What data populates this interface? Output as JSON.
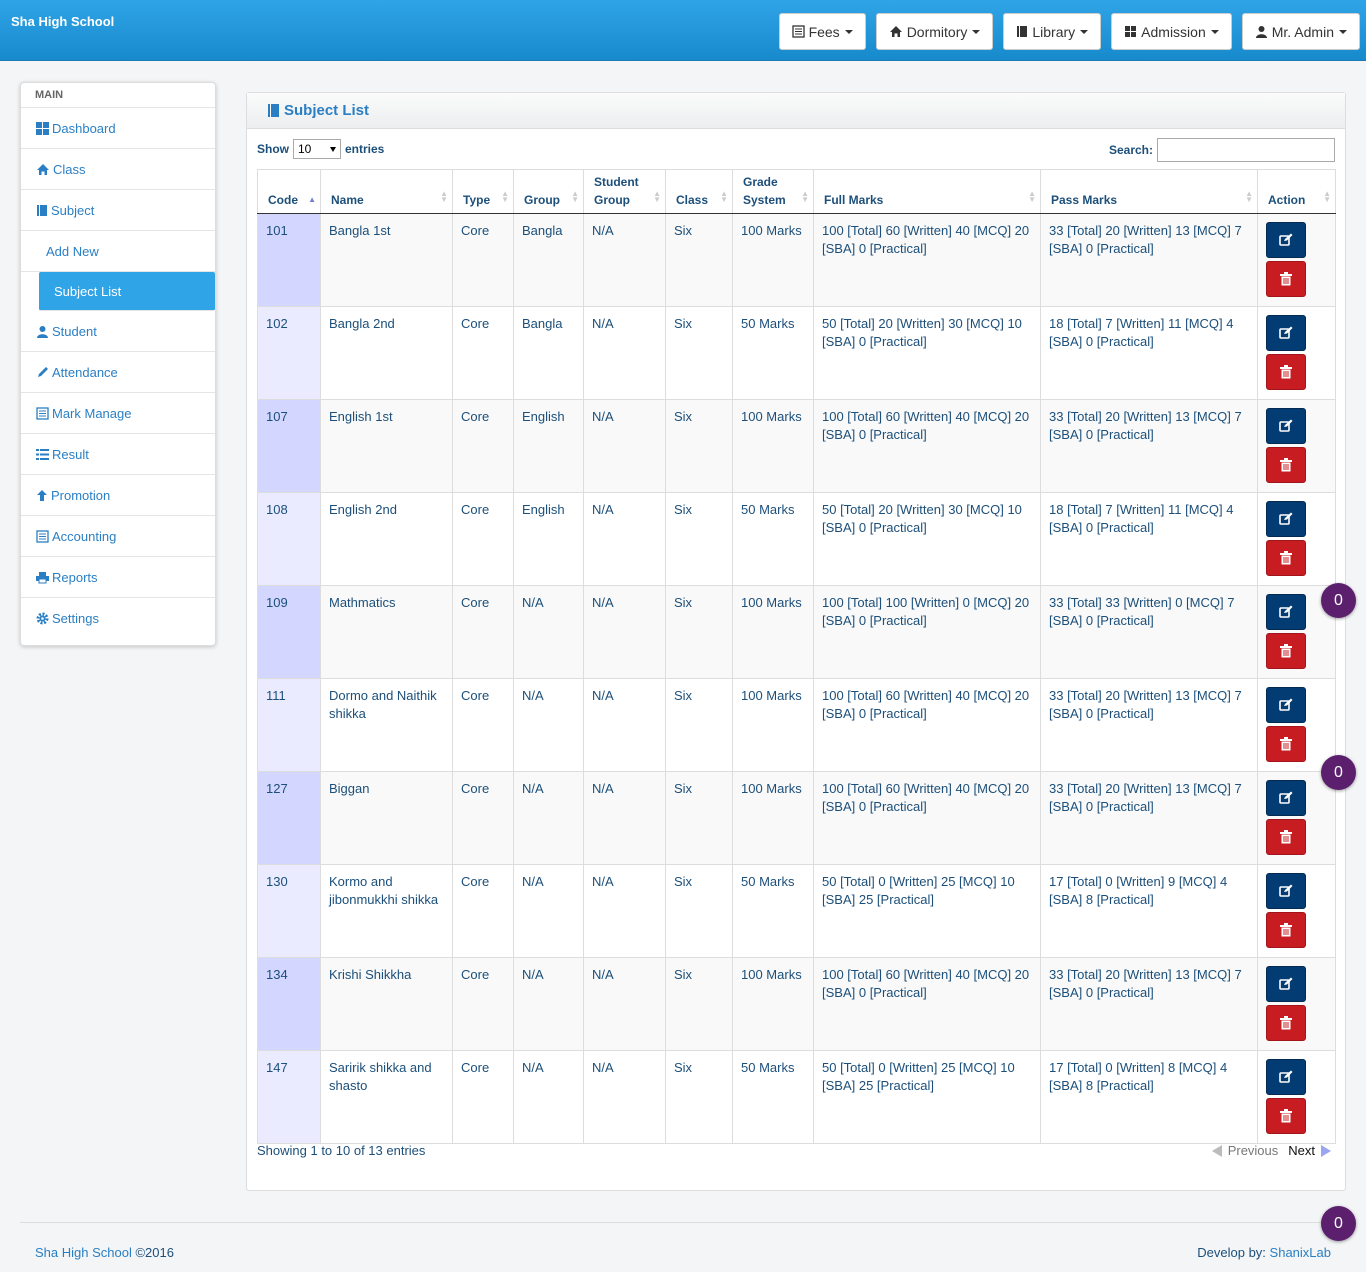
{
  "app": {
    "brand": "Sha High School"
  },
  "topnav": [
    {
      "label": "Fees",
      "icon": "list-icon"
    },
    {
      "label": "Dormitory",
      "icon": "home-icon"
    },
    {
      "label": "Library",
      "icon": "book-icon"
    },
    {
      "label": "Admission",
      "icon": "grid-icon"
    },
    {
      "label": "Mr. Admin",
      "icon": "user-icon"
    }
  ],
  "sidebar": {
    "heading": "MAIN",
    "items": [
      {
        "label": "Dashboard",
        "icon": "dashboard-icon"
      },
      {
        "label": "Class",
        "icon": "home-icon"
      },
      {
        "label": "Subject",
        "icon": "book-icon"
      },
      {
        "label": "Add New"
      },
      {
        "label": "Subject List"
      },
      {
        "label": "Student",
        "icon": "user-icon"
      },
      {
        "label": "Attendance",
        "icon": "pencil-icon"
      },
      {
        "label": "Mark Manage",
        "icon": "list-icon"
      },
      {
        "label": "Result",
        "icon": "list-bullets-icon"
      },
      {
        "label": "Promotion",
        "icon": "arrow-up-icon"
      },
      {
        "label": "Accounting",
        "icon": "list-icon"
      },
      {
        "label": "Reports",
        "icon": "print-icon"
      },
      {
        "label": "Settings",
        "icon": "gear-icon"
      }
    ]
  },
  "panel": {
    "title": "Subject List"
  },
  "controls": {
    "show_label": "Show",
    "entries_value": "10",
    "entries_label": "entries",
    "search_label": "Search:",
    "search_value": ""
  },
  "table": {
    "columns": [
      {
        "l1": "",
        "l2": "Code"
      },
      {
        "l1": "",
        "l2": "Name"
      },
      {
        "l1": "",
        "l2": "Type"
      },
      {
        "l1": "",
        "l2": "Group"
      },
      {
        "l1": "Student",
        "l2": "Group"
      },
      {
        "l1": "",
        "l2": "Class"
      },
      {
        "l1": "Grade",
        "l2": "System"
      },
      {
        "l1": "",
        "l2": "Full Marks"
      },
      {
        "l1": "",
        "l2": "Pass Marks"
      },
      {
        "l1": "",
        "l2": "Action"
      }
    ],
    "rows": [
      {
        "code": "101",
        "name": "Bangla 1st",
        "type": "Core",
        "group": "Bangla",
        "student_group": "N/A",
        "class": "Six",
        "grade": "100 Marks",
        "full": "100 [Total] 60 [Written] 40 [MCQ] 20 [SBA] 0 [Practical]",
        "pass": "33 [Total] 20 [Written] 13 [MCQ] 7 [SBA] 0 [Practical]"
      },
      {
        "code": "102",
        "name": "Bangla 2nd",
        "type": "Core",
        "group": "Bangla",
        "student_group": "N/A",
        "class": "Six",
        "grade": "50 Marks",
        "full": "50 [Total] 20 [Written] 30 [MCQ] 10 [SBA] 0 [Practical]",
        "pass": "18 [Total] 7 [Written] 11 [MCQ] 4 [SBA] 0 [Practical]"
      },
      {
        "code": "107",
        "name": "English 1st",
        "type": "Core",
        "group": "English",
        "student_group": "N/A",
        "class": "Six",
        "grade": "100 Marks",
        "full": "100 [Total] 60 [Written] 40 [MCQ] 20 [SBA] 0 [Practical]",
        "pass": "33 [Total] 20 [Written] 13 [MCQ] 7 [SBA] 0 [Practical]"
      },
      {
        "code": "108",
        "name": "English 2nd",
        "type": "Core",
        "group": "English",
        "student_group": "N/A",
        "class": "Six",
        "grade": "50 Marks",
        "full": "50 [Total] 20 [Written] 30 [MCQ] 10 [SBA] 0 [Practical]",
        "pass": "18 [Total] 7 [Written] 11 [MCQ] 4 [SBA] 0 [Practical]"
      },
      {
        "code": "109",
        "name": "Mathmatics",
        "type": "Core",
        "group": "N/A",
        "student_group": "N/A",
        "class": "Six",
        "grade": "100 Marks",
        "full": "100 [Total] 100 [Written] 0 [MCQ] 20 [SBA] 0 [Practical]",
        "pass": "33 [Total] 33 [Written] 0 [MCQ] 7 [SBA] 0 [Practical]"
      },
      {
        "code": "111",
        "name": "Dormo and Naithik shikka",
        "type": "Core",
        "group": "N/A",
        "student_group": "N/A",
        "class": "Six",
        "grade": "100 Marks",
        "full": "100 [Total] 60 [Written] 40 [MCQ] 20 [SBA] 0 [Practical]",
        "pass": "33 [Total] 20 [Written] 13 [MCQ] 7 [SBA] 0 [Practical]"
      },
      {
        "code": "127",
        "name": "Biggan",
        "type": "Core",
        "group": "N/A",
        "student_group": "N/A",
        "class": "Six",
        "grade": "100 Marks",
        "full": "100 [Total] 60 [Written] 40 [MCQ] 20 [SBA] 0 [Practical]",
        "pass": "33 [Total] 20 [Written] 13 [MCQ] 7 [SBA] 0 [Practical]"
      },
      {
        "code": "130",
        "name": "Kormo and jibonmukkhi shikka",
        "type": "Core",
        "group": "N/A",
        "student_group": "N/A",
        "class": "Six",
        "grade": "50 Marks",
        "full": "50 [Total] 0 [Written] 25 [MCQ] 10 [SBA] 25 [Practical]",
        "pass": "17 [Total] 0 [Written] 9 [MCQ] 4 [SBA] 8 [Practical]"
      },
      {
        "code": "134",
        "name": "Krishi Shikkha",
        "type": "Core",
        "group": "N/A",
        "student_group": "N/A",
        "class": "Six",
        "grade": "100 Marks",
        "full": "100 [Total] 60 [Written] 40 [MCQ] 20 [SBA] 0 [Practical]",
        "pass": "33 [Total] 20 [Written] 13 [MCQ] 7 [SBA] 0 [Practical]"
      },
      {
        "code": "147",
        "name": "Saririk shikka and shasto",
        "type": "Core",
        "group": "N/A",
        "student_group": "N/A",
        "class": "Six",
        "grade": "50 Marks",
        "full": "50 [Total] 0 [Written] 25 [MCQ] 10 [SBA] 25 [Practical]",
        "pass": "17 [Total] 0 [Written] 8 [MCQ] 4 [SBA] 8 [Practical]"
      }
    ]
  },
  "pagination": {
    "info": "Showing 1 to 10 of 13 entries",
    "previous": "Previous",
    "next": "Next"
  },
  "footer": {
    "school": "Sha High School",
    "copyright": "©2016",
    "develop_label": "Develop by:",
    "developer": "ShanixLab"
  },
  "badges": [
    "0",
    "0",
    "0"
  ],
  "colors": {
    "header": "#2fa4e7",
    "active": "#2fa4e7",
    "edit": "#033c73",
    "delete": "#c71c22",
    "badge": "#5b1f6e"
  }
}
